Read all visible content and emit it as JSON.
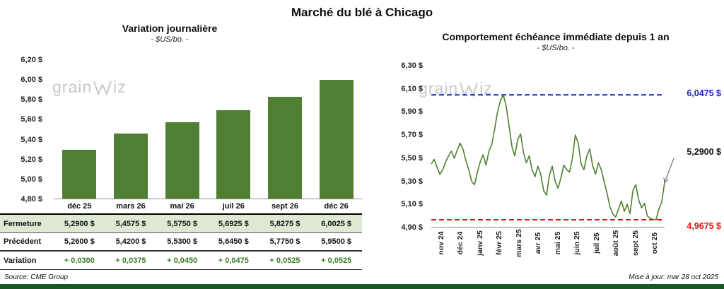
{
  "page": {
    "title": "Marché du blé à Chicago",
    "source": "Source: CME Group",
    "updated": "Mise à jour: mar 28 oct 2025",
    "watermark_prefix": "grain",
    "watermark_suffix": "iz",
    "colors": {
      "bar_green": "#507e32",
      "line_green": "#4f8030",
      "table_green_bg": "#dce9d3",
      "variation_green": "#3a7d22",
      "high_blue": "#2121c4",
      "low_red": "#e81111",
      "footer_green": "#1d5626",
      "watermark_gray": "#c8c8c8"
    }
  },
  "chart_data": [
    {
      "type": "bar",
      "title": "Variation journalière",
      "subtitle": "- $US/bo. -",
      "categories": [
        "déc 25",
        "mars 26",
        "mai 26",
        "juil 26",
        "sept 26",
        "déc 26"
      ],
      "values": [
        5.29,
        5.4575,
        5.575,
        5.6925,
        5.8275,
        6.0025
      ],
      "ylim": [
        4.8,
        6.2
      ],
      "ytick_labels": [
        "6,20 $",
        "6,00 $",
        "5,80 $",
        "5,60 $",
        "5,40 $",
        "5,20 $",
        "5,00 $",
        "4,80 $"
      ],
      "grid": false,
      "legend": "none",
      "table": {
        "rows": [
          {
            "label": "Fermeture",
            "highlight": true,
            "green": false,
            "values": [
              "5,2900  $",
              "5,4575  $",
              "5,5750  $",
              "5,6925  $",
              "5,8275  $",
              "6,0025  $"
            ]
          },
          {
            "label": "Précédent",
            "highlight": false,
            "green": false,
            "values": [
              "5,2600  $",
              "5,4200  $",
              "5,5300  $",
              "5,6450  $",
              "5,7750  $",
              "5,9500  $"
            ]
          },
          {
            "label": "Variation",
            "highlight": false,
            "green": true,
            "values": [
              "+ 0,0300",
              "+ 0,0375",
              "+ 0,0450",
              "+ 0,0475",
              "+ 0,0525",
              "+ 0,0525"
            ]
          }
        ]
      }
    },
    {
      "type": "line",
      "title": "Comportement échéance immédiate depuis 1 an",
      "subtitle": "- $US/bo. -",
      "x_labels": [
        "nov 24",
        "déc 24",
        "janv 25",
        "févr 25",
        "mars 25",
        "avr 25",
        "mai 25",
        "juin 25",
        "juil 25",
        "août 25",
        "sept 25",
        "oct 25"
      ],
      "ylim": [
        4.9,
        6.3
      ],
      "ytick_labels": [
        "6,30 $",
        "6,10 $",
        "5,90 $",
        "5,70 $",
        "5,50 $",
        "5,30 $",
        "5,10 $",
        "4,90 $"
      ],
      "grid": false,
      "legend": "none",
      "values": [
        5.45,
        5.49,
        5.42,
        5.36,
        5.4,
        5.47,
        5.52,
        5.56,
        5.5,
        5.57,
        5.63,
        5.58,
        5.48,
        5.4,
        5.3,
        5.27,
        5.38,
        5.47,
        5.53,
        5.44,
        5.56,
        5.62,
        5.75,
        5.9,
        6.0,
        6.0475,
        5.95,
        5.78,
        5.6,
        5.52,
        5.66,
        5.71,
        5.55,
        5.46,
        5.52,
        5.4,
        5.34,
        5.43,
        5.36,
        5.22,
        5.18,
        5.35,
        5.43,
        5.3,
        5.24,
        5.33,
        5.44,
        5.4,
        5.38,
        5.5,
        5.7,
        5.63,
        5.45,
        5.4,
        5.52,
        5.58,
        5.44,
        5.36,
        5.46,
        5.4,
        5.3,
        5.2,
        5.08,
        5.02,
        4.99,
        5.06,
        5.13,
        5.04,
        5.1,
        5.02,
        5.22,
        5.27,
        5.14,
        5.07,
        5.11,
        5.0,
        4.98,
        4.97,
        4.9675,
        5.06,
        5.12,
        5.29
      ],
      "high_line": {
        "value": 6.0475,
        "label": "6,0475  $"
      },
      "low_line": {
        "value": 4.9675,
        "label": "4,9675  $"
      },
      "last_value": 5.29,
      "last_label": "5,2900 $"
    }
  ]
}
